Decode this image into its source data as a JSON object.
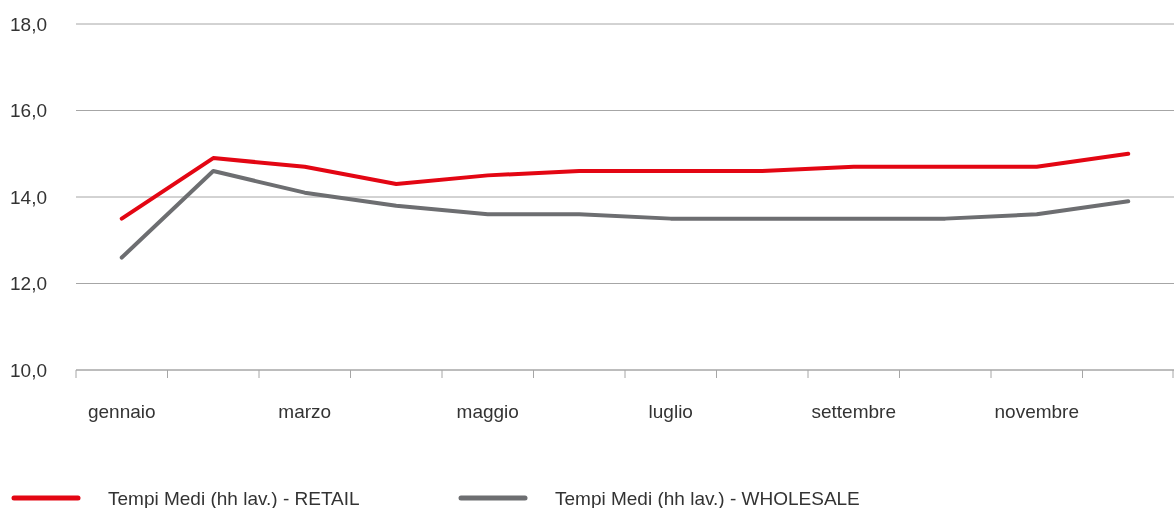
{
  "chart_data": {
    "type": "line",
    "categories": [
      "gennaio",
      null,
      "marzo",
      null,
      "maggio",
      null,
      "luglio",
      null,
      "settembre",
      null,
      "novembre",
      null
    ],
    "series": [
      {
        "name": "Tempi Medi (hh lav.) - RETAIL",
        "color": "#e30613",
        "values": [
          13.5,
          14.9,
          14.7,
          14.3,
          14.5,
          14.6,
          14.6,
          14.6,
          14.7,
          14.7,
          14.7,
          15.0
        ]
      },
      {
        "name": "Tempi Medi (hh lav.) - WHOLESALE",
        "color": "#6d6e71",
        "values": [
          12.6,
          14.6,
          14.1,
          13.8,
          13.6,
          13.6,
          13.5,
          13.5,
          13.5,
          13.5,
          13.6,
          13.9
        ]
      }
    ],
    "ylim": [
      10,
      18
    ],
    "yticks": [
      {
        "value": 10,
        "label": "10,0"
      },
      {
        "value": 12,
        "label": "12,0"
      },
      {
        "value": 14,
        "label": "14,0"
      },
      {
        "value": 16,
        "label": "16,0"
      },
      {
        "value": 18,
        "label": "18,0"
      }
    ],
    "grid": "y",
    "legend": "bottom",
    "marker": "none",
    "line_style": "solid"
  }
}
